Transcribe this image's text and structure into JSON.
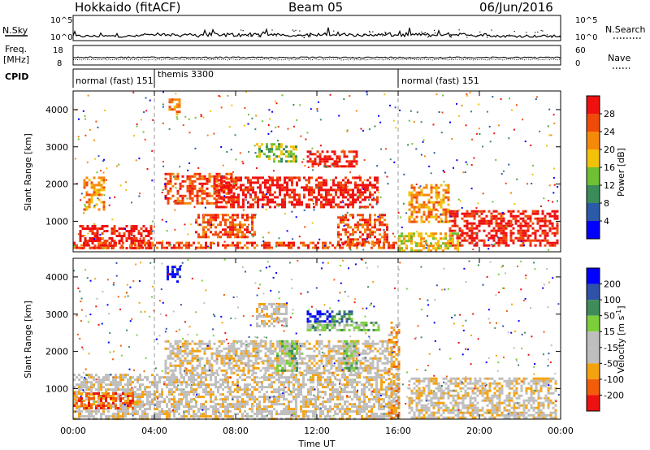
{
  "header": {
    "station": "Hokkaido (fitACF)",
    "beam": "Beam 05",
    "date": "06/Jun/2016"
  },
  "top_panels": {
    "nsky_label": "N.Sky",
    "nsky_ticks": [
      "10^5",
      "10^0"
    ],
    "nsearch_label": "N.Search",
    "nsearch_ticks": [
      "10^5",
      "10^0"
    ],
    "freq_label_1": "Freq.",
    "freq_label_2": "[MHz]",
    "freq_ticks": [
      "18",
      "8"
    ],
    "nave_label": "Nave",
    "nave_ticks": [
      "60",
      "0"
    ],
    "cpid_label": "CPID",
    "cpid_modes": [
      {
        "label": "normal (fast) 151",
        "start": "00:00",
        "end": "04:00"
      },
      {
        "label": "themis 3300",
        "start": "04:00",
        "end": "16:00"
      },
      {
        "label": "normal (fast) 151",
        "start": "16:00",
        "end": "00:00"
      }
    ]
  },
  "chart_data": [
    {
      "type": "heatmap",
      "name": "power",
      "ylabel": "Slant Range [km]",
      "xlim": [
        "00:00",
        "00:00"
      ],
      "ylim": [
        180,
        4500
      ],
      "y_ticks": [
        "1000",
        "2000",
        "3000",
        "4000"
      ],
      "colorbar_label": "Power [dB]",
      "colorbar_ticks": [
        "28",
        "24",
        "20",
        "16",
        "12",
        "8",
        "4"
      ],
      "colors": [
        "#0000ff",
        "#2b5aa8",
        "#3a8c5a",
        "#6fc034",
        "#f2c10a",
        "#f58a0a",
        "#f04a0a",
        "#ef1010"
      ],
      "regions": [
        {
          "t0": 0.3,
          "t1": 3.8,
          "r0": 300,
          "r1": 900,
          "level": 7
        },
        {
          "t0": 0.0,
          "t1": 16.0,
          "r0": 300,
          "r1": 450,
          "level": 6
        },
        {
          "t0": 4.5,
          "t1": 8.0,
          "r0": 1500,
          "r1": 2300,
          "level": 6
        },
        {
          "t0": 7.0,
          "t1": 15.0,
          "r0": 1400,
          "r1": 2200,
          "level": 7
        },
        {
          "t0": 11.5,
          "t1": 14.0,
          "r0": 2500,
          "r1": 2900,
          "level": 7
        },
        {
          "t0": 13.0,
          "t1": 15.5,
          "r0": 400,
          "r1": 1200,
          "level": 6
        },
        {
          "t0": 6.0,
          "t1": 9.0,
          "r0": 600,
          "r1": 1200,
          "level": 6
        },
        {
          "t0": 16.5,
          "t1": 18.5,
          "r0": 1000,
          "r1": 2000,
          "level": 5
        },
        {
          "t0": 18.5,
          "t1": 23.8,
          "r0": 350,
          "r1": 1300,
          "level": 7
        },
        {
          "t0": 16.0,
          "t1": 19.0,
          "r0": 200,
          "r1": 700,
          "level": 4
        },
        {
          "t0": 9.0,
          "t1": 11.0,
          "r0": 2600,
          "r1": 3100,
          "level": 3
        },
        {
          "t0": 4.7,
          "t1": 5.3,
          "r0": 3900,
          "r1": 4300,
          "level": 5
        },
        {
          "t0": 0.5,
          "t1": 1.5,
          "r0": 1300,
          "r1": 2200,
          "level": 5
        }
      ]
    },
    {
      "type": "heatmap",
      "name": "velocity",
      "ylabel": "Slant Range [km]",
      "xlabel": "Time UT",
      "x_ticks": [
        "00:00",
        "04:00",
        "08:00",
        "12:00",
        "16:00",
        "20:00",
        "00:00"
      ],
      "ylim": [
        180,
        4500
      ],
      "y_ticks": [
        "1000",
        "2000",
        "3000",
        "4000"
      ],
      "colorbar_label": "Velocity [m s",
      "colorbar_label_sup": "-1",
      "colorbar_label_end": "]",
      "colorbar_ticks": [
        "200",
        "100",
        "50",
        "15",
        "-15",
        "-50",
        "-100",
        "-200"
      ],
      "colors": [
        "#ee1111",
        "#f25c0a",
        "#f5a20f",
        "#bebebe",
        "#bebebe",
        "#7ccf3a",
        "#3f8c5a",
        "#2f52a8",
        "#0000ff"
      ],
      "regions": [
        {
          "t0": 0.0,
          "t1": 16.0,
          "r0": 200,
          "r1": 1400,
          "level": 3
        },
        {
          "t0": 4.5,
          "t1": 15.5,
          "r0": 1400,
          "r1": 2300,
          "level": 3
        },
        {
          "t0": 16.5,
          "t1": 23.8,
          "r0": 200,
          "r1": 1300,
          "level": 3
        },
        {
          "t0": 11.5,
          "t1": 15.0,
          "r0": 2550,
          "r1": 2800,
          "level": 5
        },
        {
          "t0": 11.5,
          "t1": 12.7,
          "r0": 2800,
          "r1": 3100,
          "level": 8
        },
        {
          "t0": 12.7,
          "t1": 13.7,
          "r0": 2800,
          "r1": 3100,
          "level": 6
        },
        {
          "t0": 10.0,
          "t1": 11.0,
          "r0": 1500,
          "r1": 2300,
          "level": 5
        },
        {
          "t0": 13.3,
          "t1": 14.0,
          "r0": 1500,
          "r1": 2300,
          "level": 5
        },
        {
          "t0": 4.6,
          "t1": 5.3,
          "r0": 3900,
          "r1": 4300,
          "level": 8
        },
        {
          "t0": 9.0,
          "t1": 10.5,
          "r0": 2700,
          "r1": 3300,
          "level": 3
        },
        {
          "t0": 0.0,
          "t1": 3.0,
          "r0": 500,
          "r1": 900,
          "level": 1
        },
        {
          "t0": 15.5,
          "t1": 16.0,
          "r0": 200,
          "r1": 2800,
          "level": 2
        }
      ]
    }
  ]
}
